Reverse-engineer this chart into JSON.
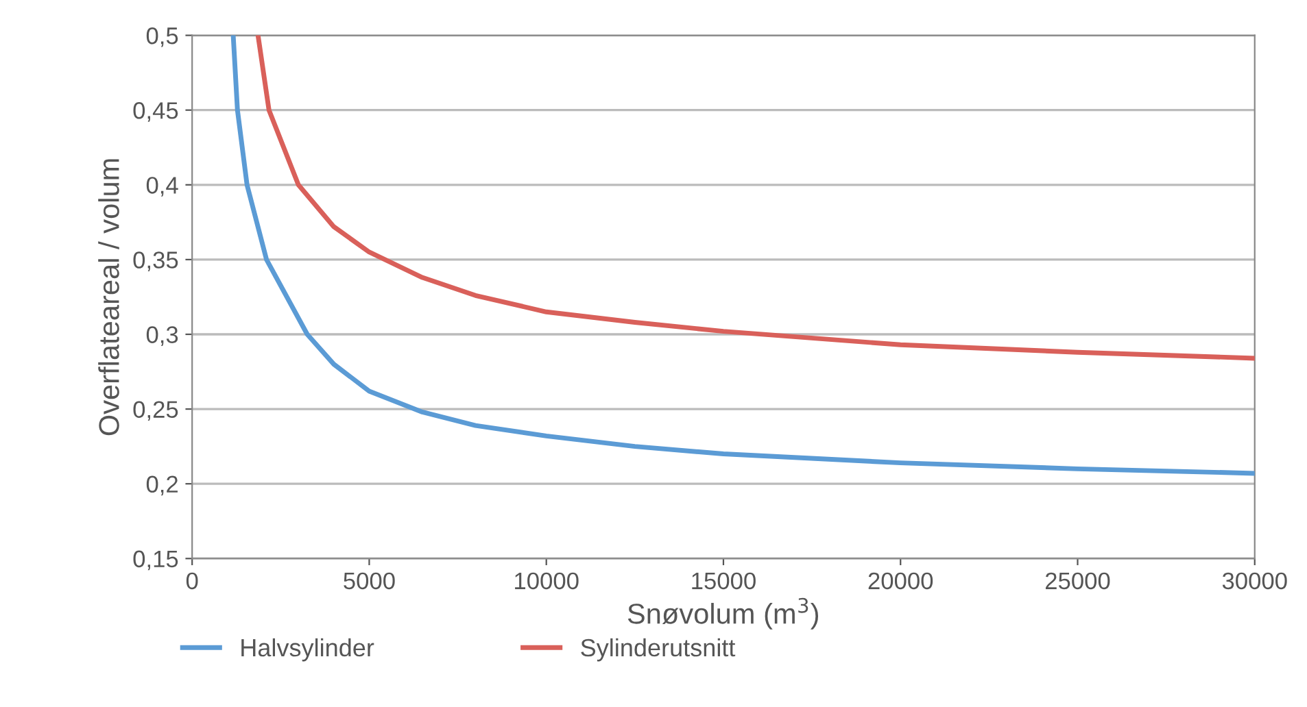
{
  "chart_data": {
    "type": "line",
    "xlabel": "Snøvolum (m$^{3}$)",
    "ylabel": "Overflateareal / volum",
    "xlim": [
      0,
      30000
    ],
    "xticks": [
      0,
      5000,
      10000,
      15000,
      20000,
      25000,
      30000
    ],
    "ylim": [
      0.15,
      0.5
    ],
    "yticks": [
      {
        "value": 0.15,
        "label": "0,15"
      },
      {
        "value": 0.2,
        "label": "0,2"
      },
      {
        "value": 0.25,
        "label": "0,25"
      },
      {
        "value": 0.3,
        "label": "0,3"
      },
      {
        "value": 0.35,
        "label": "0,35"
      },
      {
        "value": 0.4,
        "label": "0,4"
      },
      {
        "value": 0.45,
        "label": "0,45"
      },
      {
        "value": 0.5,
        "label": "0,5"
      }
    ],
    "grid": "y",
    "legend": "bottom left",
    "marker": "none",
    "line_style": "solid",
    "series": [
      {
        "name": "Halvsylinder",
        "color": "#5b9bd5",
        "x": [
          1160,
          1280,
          1550,
          2100,
          3250,
          4000,
          5000,
          6500,
          8000,
          10000,
          12500,
          15000,
          20000,
          25000,
          30000
        ],
        "values": [
          0.5,
          0.45,
          0.4,
          0.35,
          0.3,
          0.28,
          0.262,
          0.248,
          0.239,
          0.232,
          0.225,
          0.22,
          0.214,
          0.21,
          0.207
        ]
      },
      {
        "name": "Sylinderutsnitt",
        "color": "#d9605a",
        "x": [
          1860,
          2170,
          3000,
          4000,
          5000,
          6500,
          8000,
          10000,
          12500,
          15000,
          20000,
          25000,
          30000
        ],
        "values": [
          0.5,
          0.45,
          0.4,
          0.372,
          0.355,
          0.338,
          0.326,
          0.315,
          0.308,
          0.302,
          0.293,
          0.288,
          0.284
        ]
      }
    ]
  }
}
